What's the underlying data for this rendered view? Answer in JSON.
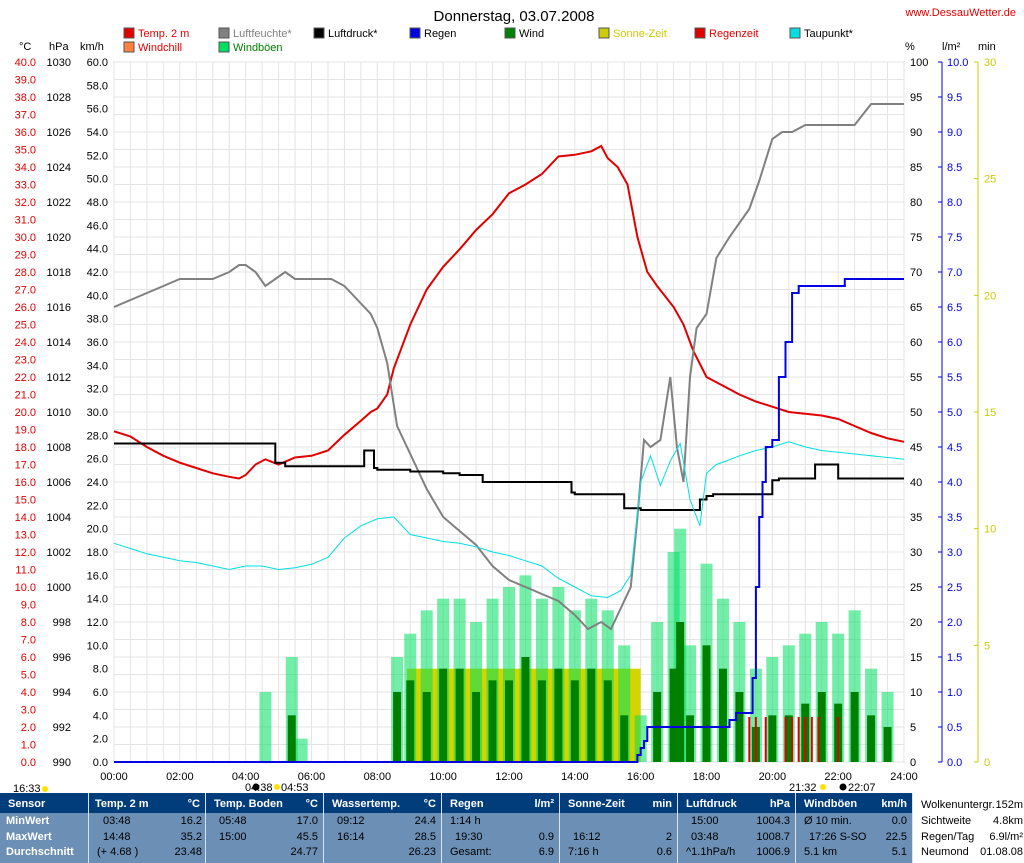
{
  "header": {
    "title": "Donnerstag, 03.07.2008",
    "site": "www.DessauWetter.de"
  },
  "legend": [
    {
      "label": "Temp. 2 m",
      "color": "#e00000"
    },
    {
      "label": "Luftfeuchte*",
      "color": "#808080"
    },
    {
      "label": "Luftdruck*",
      "color": "#000000"
    },
    {
      "label": "Regen",
      "color": "#0000e0"
    },
    {
      "label": "Wind",
      "color": "#008000"
    },
    {
      "label": "Sonne-Zeit",
      "color": "#cccc00"
    },
    {
      "label": "Regenzeit",
      "color": "#e00000"
    },
    {
      "label": "Taupunkt*",
      "color": "#00e0e0"
    },
    {
      "label": "Windchill",
      "color": "#ff8040"
    },
    {
      "label": "Windböen",
      "color": "#00e060"
    }
  ],
  "axis_units": {
    "temp": "°C",
    "pressure": "hPa",
    "wind": "km/h",
    "humidity": "%",
    "rain": "l/m²",
    "sun": "min"
  },
  "axis_colors": {
    "temp": "#e00000",
    "pressure": "#000000",
    "wind": "#000000",
    "humidity": "#000000",
    "rain": "#0000e0",
    "sun": "#cccc00"
  },
  "events": {
    "sunrise": "04:53",
    "moonrise": "04:38",
    "moon_left": "16:33",
    "sunset": "21:32",
    "moonset": "22:07"
  },
  "chart_data": {
    "type": "line",
    "title": "Donnerstag, 03.07.2008",
    "x_unit": "hours",
    "xlim": [
      0,
      24
    ],
    "x_ticks": [
      "00:00",
      "02:00",
      "04:00",
      "06:00",
      "08:00",
      "10:00",
      "12:00",
      "14:00",
      "16:00",
      "18:00",
      "20:00",
      "22:00",
      "24:00"
    ],
    "axes": {
      "temp": {
        "ylim": [
          0,
          40
        ],
        "step": 1
      },
      "pressure": {
        "ylim": [
          990,
          1030
        ],
        "step": 2
      },
      "wind": {
        "ylim": [
          0,
          60
        ],
        "step": 2
      },
      "humidity": {
        "ylim": [
          0,
          100
        ],
        "step": 5
      },
      "rain": {
        "ylim": [
          0,
          10
        ],
        "step": 0.5
      },
      "sun": {
        "ylim": [
          0,
          30
        ],
        "step": 5
      }
    },
    "series": [
      {
        "name": "Temp. 2 m",
        "axis": "temp",
        "color": "#e00000",
        "x": [
          0,
          0.5,
          1,
          1.5,
          2,
          2.5,
          3,
          3.5,
          3.8,
          4,
          4.3,
          4.6,
          5,
          5.5,
          6,
          6.5,
          7,
          7.5,
          7.8,
          8,
          8.3,
          8.5,
          8.7,
          9,
          9.5,
          10,
          10.5,
          11,
          11.5,
          12,
          12.5,
          13,
          13.5,
          14,
          14.5,
          14.8,
          15,
          15.3,
          15.6,
          15.9,
          16.2,
          16.5,
          17,
          17.3,
          17.6,
          18,
          18.5,
          19,
          19.5,
          20,
          20.5,
          21,
          21.5,
          22,
          22.5,
          23,
          23.5,
          24
        ],
        "values": [
          18.9,
          18.6,
          18.0,
          17.5,
          17.1,
          16.8,
          16.5,
          16.3,
          16.2,
          16.4,
          17.0,
          17.3,
          17.0,
          17.4,
          17.5,
          17.8,
          18.7,
          19.5,
          20.0,
          20.2,
          21.0,
          22.5,
          23.5,
          25.0,
          27.0,
          28.3,
          29.3,
          30.4,
          31.3,
          32.5,
          33.0,
          33.6,
          34.6,
          34.7,
          34.9,
          35.2,
          34.5,
          34.0,
          33.0,
          30.0,
          28.0,
          27.2,
          26.0,
          25.0,
          23.5,
          22.0,
          21.5,
          21.0,
          20.6,
          20.3,
          20.0,
          19.9,
          19.8,
          19.6,
          19.2,
          18.8,
          18.5,
          18.3
        ]
      },
      {
        "name": "Luftfeuchte*",
        "axis": "humidity",
        "color": "#808080",
        "x": [
          0,
          0.5,
          1,
          1.5,
          2,
          2.5,
          3,
          3.5,
          3.8,
          4,
          4.3,
          4.6,
          4.9,
          5.2,
          5.5,
          5.8,
          6.2,
          6.6,
          7,
          7.4,
          7.8,
          8,
          8.3,
          8.6,
          9,
          9.5,
          10,
          10.5,
          11,
          11.5,
          12,
          12.5,
          13,
          13.5,
          14,
          14.4,
          14.8,
          15.1,
          15.4,
          15.7,
          15.9,
          16.1,
          16.3,
          16.6,
          16.9,
          17.1,
          17.3,
          17.5,
          17.7,
          18,
          18.3,
          18.7,
          19,
          19.3,
          19.6,
          20,
          20.3,
          20.6,
          21,
          21.5,
          22,
          22.5,
          23,
          23.5,
          24
        ],
        "values": [
          65,
          66,
          67,
          68,
          69,
          69,
          69,
          70,
          71,
          71,
          70,
          68,
          69,
          70,
          69,
          69,
          69,
          69,
          68,
          66,
          64,
          62,
          57,
          48,
          44,
          39,
          35,
          33,
          31,
          28,
          26,
          25,
          24,
          23,
          21,
          19,
          20,
          19,
          22,
          25,
          35,
          46,
          45,
          46,
          55,
          45,
          40,
          55,
          62,
          64,
          72,
          75,
          77,
          79,
          83,
          89,
          90,
          90,
          91,
          91,
          91,
          91,
          94,
          94,
          94
        ]
      },
      {
        "name": "Luftdruck*",
        "axis": "pressure",
        "color": "#000000",
        "x": [
          0,
          1,
          2,
          3,
          4,
          4.7,
          4.9,
          5.2,
          6,
          7,
          7.4,
          7.6,
          7.9,
          8,
          9,
          10,
          10.5,
          11,
          11.2,
          11.5,
          12,
          13,
          13.6,
          13.9,
          14,
          15,
          15.5,
          16,
          17,
          17.6,
          17.8,
          18,
          18.2,
          19,
          19.5,
          20,
          20.2,
          20.6,
          21,
          21.3,
          21.5,
          21.8,
          22,
          23,
          24
        ],
        "values": [
          1008.2,
          1008.2,
          1008.2,
          1008.2,
          1008.2,
          1008.2,
          1007.1,
          1006.9,
          1006.9,
          1006.9,
          1006.9,
          1007.8,
          1006.8,
          1006.7,
          1006.6,
          1006.5,
          1006.4,
          1006.4,
          1006.0,
          1006.0,
          1006.0,
          1006.0,
          1006.0,
          1005.4,
          1005.3,
          1005.3,
          1004.5,
          1004.4,
          1004.4,
          1004.4,
          1005.0,
          1005.2,
          1005.3,
          1005.3,
          1005.3,
          1006.1,
          1006.2,
          1006.2,
          1006.2,
          1007.0,
          1007.0,
          1007.0,
          1006.2,
          1006.2,
          1006.2
        ]
      },
      {
        "name": "Taupunkt*",
        "axis": "temp",
        "color": "#00e0e0",
        "x": [
          0,
          0.5,
          1,
          1.5,
          2,
          2.5,
          3,
          3.5,
          4,
          4.5,
          5,
          5.5,
          6,
          6.5,
          7,
          7.5,
          8,
          8.5,
          9,
          9.5,
          10,
          10.5,
          11,
          11.5,
          12,
          12.5,
          13,
          13.5,
          14,
          14.5,
          15,
          15.4,
          15.7,
          16,
          16.3,
          16.6,
          16.9,
          17.2,
          17.5,
          17.8,
          18,
          18.3,
          18.6,
          19,
          19.5,
          20,
          20.5,
          21,
          21.5,
          22,
          22.5,
          23,
          23.5,
          24
        ],
        "values": [
          12.5,
          12.2,
          11.9,
          11.7,
          11.5,
          11.4,
          11.2,
          11.0,
          11.2,
          11.2,
          11.0,
          11.1,
          11.3,
          11.7,
          12.8,
          13.5,
          13.9,
          14.0,
          13.0,
          12.8,
          12.6,
          12.5,
          12.3,
          12.0,
          11.8,
          11.5,
          11.2,
          10.5,
          10.0,
          9.5,
          9.4,
          9.8,
          10.7,
          16.0,
          17.5,
          15.8,
          17.2,
          18.2,
          15.0,
          13.5,
          16.5,
          17.0,
          17.2,
          17.5,
          17.8,
          18.0,
          18.3,
          18.0,
          17.8,
          17.7,
          17.6,
          17.5,
          17.4,
          17.3
        ]
      },
      {
        "name": "Regen",
        "axis": "rain",
        "color": "#0000e0",
        "x": [
          0,
          15.8,
          15.9,
          16.0,
          16.1,
          16.2,
          17.0,
          18.0,
          18.7,
          18.9,
          19.2,
          19.4,
          19.5,
          19.6,
          19.7,
          19.8,
          20.0,
          20.2,
          20.4,
          20.6,
          20.8,
          21.0,
          21.5,
          22.0,
          22.2,
          23.0,
          24
        ],
        "values": [
          0,
          0,
          0.1,
          0.2,
          0.3,
          0.5,
          0.5,
          0.5,
          0.6,
          0.7,
          0.7,
          1.2,
          2.5,
          3.5,
          4.0,
          4.5,
          4.6,
          5.5,
          6.0,
          6.7,
          6.8,
          6.8,
          6.8,
          6.8,
          6.9,
          6.9,
          6.9
        ]
      }
    ],
    "wind": {
      "name": "Wind",
      "axis": "wind",
      "color": "#008000",
      "x": [
        4.5,
        5.4,
        5.7,
        8.6,
        9.0,
        9.5,
        10.0,
        10.5,
        11.0,
        11.5,
        12.0,
        12.5,
        13.0,
        13.5,
        14.0,
        14.5,
        15.0,
        15.5,
        16.0,
        16.5,
        17.0,
        17.2,
        17.5,
        18.0,
        18.5,
        19.0,
        19.5,
        20.0,
        20.5,
        21.0,
        21.5,
        22.0,
        22.5,
        23.0,
        23.5
      ],
      "values": [
        0,
        4,
        0,
        6,
        7,
        6,
        8,
        8,
        6,
        7,
        7,
        9,
        7,
        8,
        7,
        8,
        7,
        4,
        0,
        6,
        8,
        12,
        4,
        10,
        8,
        6,
        3,
        4,
        4,
        5,
        6,
        5,
        6,
        4,
        3
      ]
    },
    "gusts": {
      "name": "Windböen",
      "axis": "wind",
      "color": "#00e060",
      "x": [
        4.6,
        5.4,
        5.7,
        8.6,
        9.0,
        9.5,
        10.0,
        10.5,
        11.0,
        11.5,
        12.0,
        12.5,
        13.0,
        13.5,
        14.0,
        14.5,
        15.0,
        15.5,
        16.0,
        16.5,
        17.0,
        17.2,
        17.5,
        18.0,
        18.5,
        19.0,
        19.5,
        20.0,
        20.5,
        21.0,
        21.5,
        22.0,
        22.5,
        23.0,
        23.5
      ],
      "values": [
        6,
        9,
        2,
        9,
        11,
        13,
        14,
        14,
        12,
        14,
        15,
        16,
        14,
        15,
        13,
        14,
        13,
        10,
        4,
        12,
        18,
        20,
        10,
        17,
        14,
        12,
        8,
        9,
        10,
        11,
        12,
        11,
        13,
        8,
        6
      ]
    },
    "sun_blocks": [
      {
        "from": 8.9,
        "to": 14.0,
        "minutes": 4
      },
      {
        "from": 14.0,
        "to": 16.0,
        "minutes": 4
      }
    ],
    "rain_time_marks": [
      19.3,
      19.5,
      19.8,
      20.4,
      20.6,
      20.8,
      21.0,
      21.2,
      21.4,
      22.0
    ]
  },
  "stats": {
    "headers": {
      "sensor": "Sensor",
      "temp": "Temp. 2 m",
      "temp_u": "°C",
      "soil": "Temp. Boden",
      "soil_u": "°C",
      "water": "Wassertemp.",
      "water_u": "°C",
      "rain": "Regen",
      "rain_u": "l/m²",
      "sun": "Sonne-Zeit",
      "sun_u": "min",
      "press": "Luftdruck",
      "press_u": "hPa",
      "gust": "Windböen",
      "gust_u": "km/h"
    },
    "row_labels": [
      "MinWert",
      "MaxWert",
      "Durchschnitt"
    ],
    "temp": [
      [
        "03:48",
        "16.2"
      ],
      [
        "14:48",
        "35.2"
      ],
      [
        "(+ 4.68 )",
        "23.48"
      ]
    ],
    "soil": [
      [
        "05:48",
        "17.0"
      ],
      [
        "15:00",
        "45.5"
      ],
      [
        "",
        "24.77"
      ]
    ],
    "water": [
      [
        "09:12",
        "24.4"
      ],
      [
        "16:14",
        "28.5"
      ],
      [
        "",
        "26.23"
      ]
    ],
    "rain": [
      [
        "1:14 h",
        ""
      ],
      [
        "19:30",
        "0.9"
      ],
      [
        "Gesamt:",
        "6.9"
      ]
    ],
    "sun": [
      [
        "",
        ""
      ],
      [
        "16:12",
        "2"
      ],
      [
        "7:16 h",
        "0.6"
      ]
    ],
    "press": [
      [
        "15:00",
        "1004.3"
      ],
      [
        "03:48",
        "1008.7"
      ],
      [
        "^1.1hPa/h",
        "1006.9"
      ]
    ],
    "gust": [
      [
        "Ø 10 min.",
        "0.0"
      ],
      [
        "17:26    S-SO",
        "22.5"
      ],
      [
        "5.1 km",
        "5.1"
      ]
    ],
    "extra": [
      [
        "Wolkenuntergr.",
        "152m"
      ],
      [
        "Sichtweite",
        "4.8km"
      ],
      [
        "Regen/Tag",
        "6.9l/m²"
      ],
      [
        "Neumond",
        "01.08.08"
      ]
    ]
  }
}
